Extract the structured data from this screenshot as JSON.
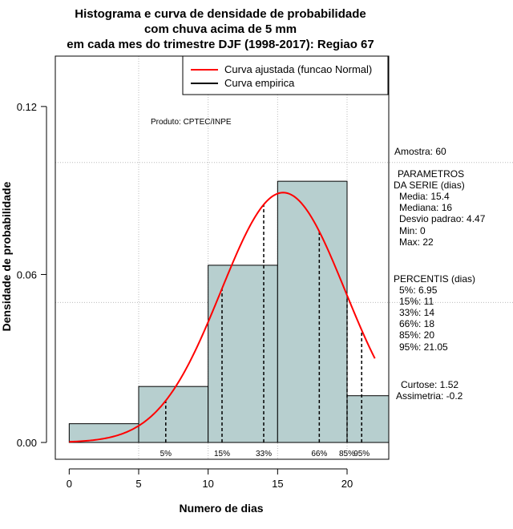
{
  "chart_data": {
    "type": "bar",
    "title": [
      "Histograma e curva de densidade de probabilidade",
      "com chuva acima de 5 mm",
      "em cada mes do trimestre DJF (1998-2017): Regiao 67"
    ],
    "xlabel": "Numero de dias",
    "ylabel": "Densidade de probabilidade",
    "xlim": [
      -1,
      23
    ],
    "ylim": [
      -0.006,
      0.138
    ],
    "x_ticks": [
      0,
      5,
      10,
      15,
      20
    ],
    "y_ticks": [
      0.0,
      0.06,
      0.12
    ],
    "y_tick_labels": [
      "0.00",
      "0.06",
      "0.12"
    ],
    "grid_lines_x": [
      5,
      10,
      15,
      20
    ],
    "grid_lines_y": [
      0.1,
      0.05
    ],
    "bins": [
      {
        "from": 0,
        "to": 5,
        "density": 0.0067
      },
      {
        "from": 5,
        "to": 10,
        "density": 0.02
      },
      {
        "from": 10,
        "to": 15,
        "density": 0.0633
      },
      {
        "from": 15,
        "to": 20,
        "density": 0.0933
      },
      {
        "from": 20,
        "to": 23,
        "density": 0.0167
      }
    ],
    "normal_fit": {
      "mean": 15.4,
      "sd": 4.47,
      "x_from": 0,
      "x_to": 22
    },
    "percentiles": [
      {
        "label": "5%",
        "x": 6.95
      },
      {
        "label": "15%",
        "x": 11
      },
      {
        "label": "33%",
        "x": 14
      },
      {
        "label": "66%",
        "x": 18
      },
      {
        "label": "85%",
        "x": 20
      },
      {
        "label": "95%",
        "x": 21.05
      }
    ],
    "legend": {
      "position": "top-right",
      "entries": [
        {
          "label": "Curva ajustada (funcao Normal)",
          "color": "#ff0000"
        },
        {
          "label": "Curva empirica",
          "color": "#000000"
        }
      ]
    },
    "annotation": "Produto: CPTEC/INPE",
    "bar_color": "#b7cfcf"
  },
  "side_panel": {
    "amostra": "Amostra: 60",
    "params_title_1": "PARAMETROS",
    "params_title_2": "DA SERIE (dias)",
    "params": [
      "Media: 15.4",
      "Mediana: 16",
      "Desvio padrao: 4.47",
      "Min: 0",
      "Max: 22"
    ],
    "percentis_title": "PERCENTIS (dias)",
    "percentis": [
      "5%: 6.95",
      "15%: 11",
      "33%: 14",
      "66%: 18",
      "85%: 20",
      "95%: 21.05"
    ],
    "curtose": "Curtose: 1.52",
    "assimetria": "Assimetria: -0.2"
  }
}
